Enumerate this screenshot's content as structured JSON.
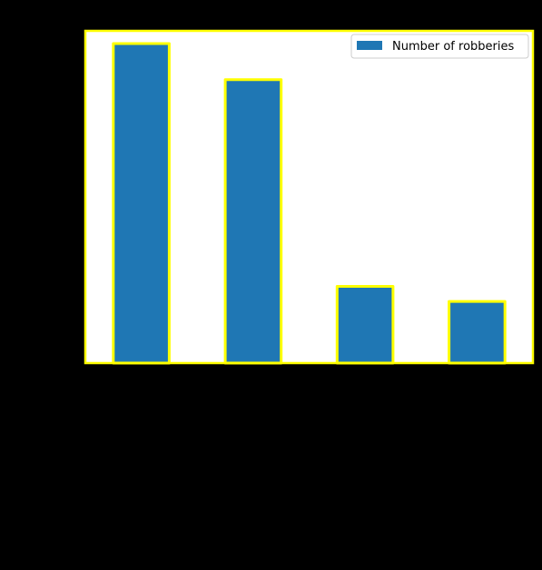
{
  "chart_data": {
    "type": "bar",
    "categories": [
      "",
      "",
      "",
      ""
    ],
    "values": [
      1000,
      887,
      240,
      193
    ],
    "title": "",
    "xlabel": "",
    "ylabel": "",
    "ylim": [
      0,
      1000
    ],
    "legend": {
      "label": "Number of robberies",
      "position": "top-right"
    },
    "grid": false,
    "colors": {
      "figure_background": "#000000",
      "plot_background": "#ffffff",
      "bar_fill": "#1f77b4",
      "highlight_outline": "#ffff00",
      "baseline": "#d9534f"
    }
  }
}
